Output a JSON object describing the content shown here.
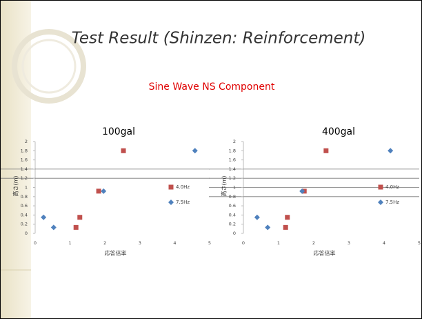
{
  "title": "Test Result (Shinzen: Reinforcement)",
  "subtitle": "Sine Wave NS Component",
  "chart_data": [
    {
      "type": "scatter",
      "title": "100gal",
      "x_label": "応答倍率",
      "y_label": "高さ(m)",
      "xlim": [
        0,
        5
      ],
      "xticks": [
        0,
        1,
        2,
        3,
        4,
        5
      ],
      "ylim": [
        0,
        2
      ],
      "yticks": [
        0,
        0.2,
        0.4,
        0.6,
        0.8,
        1,
        1.2,
        1.4,
        1.6,
        1.8,
        2
      ],
      "reference_lines": [
        1.2,
        1.4
      ],
      "legend": "right",
      "series": [
        {
          "name": "4.0Hz",
          "color": "#c0504d",
          "marker": "square",
          "x": [
            1.17,
            1.28,
            1.82,
            2.53
          ],
          "values": [
            0.13,
            0.35,
            0.92,
            1.8
          ]
        },
        {
          "name": "7.5Hz",
          "color": "#4f81bd",
          "marker": "diamond",
          "x": [
            0.24,
            0.53,
            1.96,
            4.58
          ],
          "values": [
            0.35,
            0.13,
            0.92,
            1.8
          ]
        }
      ]
    },
    {
      "type": "scatter",
      "title": "400gal",
      "x_label": "応答倍率",
      "y_label": "高さ(m)",
      "xlim": [
        0,
        5
      ],
      "xticks": [
        0,
        1,
        2,
        3,
        4,
        5
      ],
      "ylim": [
        0,
        2
      ],
      "yticks": [
        0,
        0.2,
        0.4,
        0.6,
        0.8,
        1,
        1.2,
        1.4,
        1.6,
        1.8,
        2
      ],
      "reference_lines": [
        0.8,
        1,
        1.2,
        1.4
      ],
      "legend": "right",
      "series": [
        {
          "name": "4.0Hz",
          "color": "#c0504d",
          "marker": "square",
          "x": [
            1.2,
            1.25,
            1.73,
            2.35
          ],
          "values": [
            0.13,
            0.35,
            0.92,
            1.8
          ]
        },
        {
          "name": "7.5Hz",
          "color": "#4f81bd",
          "marker": "diamond",
          "x": [
            0.39,
            0.69,
            1.67,
            4.18
          ],
          "values": [
            0.35,
            0.13,
            0.92,
            1.8
          ]
        }
      ]
    }
  ]
}
